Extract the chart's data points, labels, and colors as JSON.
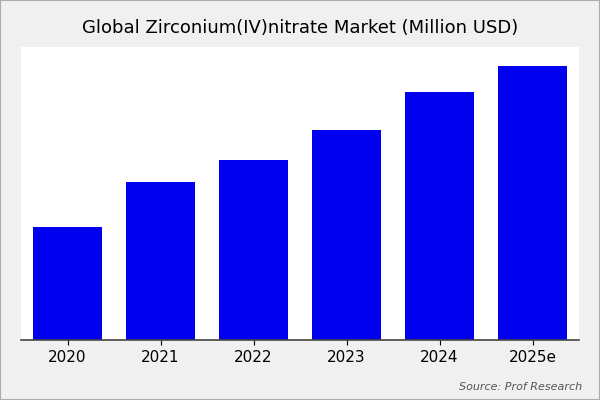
{
  "title": "Global Zirconium(IV)nitrate Market (Million USD)",
  "categories": [
    "2020",
    "2021",
    "2022",
    "2023",
    "2024",
    "2025e"
  ],
  "values": [
    30,
    42,
    48,
    56,
    66,
    73
  ],
  "bar_color": "#0000EE",
  "background_color": "#f0f0f0",
  "plot_bg_color": "#ffffff",
  "source_text": "Source: Prof Research",
  "title_fontsize": 13,
  "source_fontsize": 8,
  "tick_fontsize": 11,
  "bar_width": 0.75,
  "ylim_max": 78,
  "border_color": "#aaaaaa"
}
